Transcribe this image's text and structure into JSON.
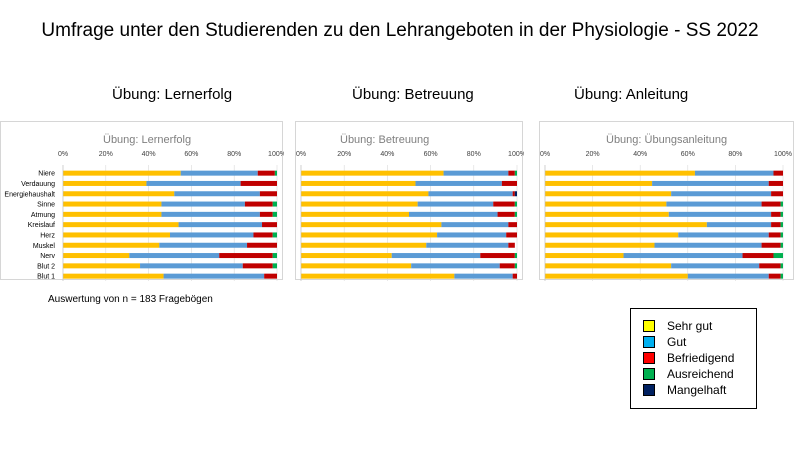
{
  "title": "Umfrage unter den Studierenden zu den Lehrangeboten in der Physiologie - SS 2022",
  "sections": [
    "Übung: Lernerfolg",
    "Übung: Betreuung",
    "Übung: Anleitung"
  ],
  "footnote": "Auswertung von n = 183 Fragebögen",
  "legend": [
    {
      "label": "Sehr gut",
      "color": "#ffff00"
    },
    {
      "label": "Gut",
      "color": "#00b0f0"
    },
    {
      "label": "Befriedigend",
      "color": "#ff0000"
    },
    {
      "label": "Ausreichend",
      "color": "#00b050"
    },
    {
      "label": "Mangelhaft",
      "color": "#002060"
    }
  ],
  "chart_data": [
    {
      "type": "bar",
      "stacked": true,
      "orientation": "horizontal",
      "title": "Übung: Lernerfolg",
      "categories": [
        "Niere",
        "Verdauung",
        "Energiehaushalt",
        "Sinne",
        "Atmung",
        "Kreislauf",
        "Herz",
        "Muskel",
        "Nerv",
        "Blut 2",
        "Blut 1"
      ],
      "x_ticks": [
        "0%",
        "20%",
        "40%",
        "60%",
        "80%",
        "100%"
      ],
      "xlim": [
        0,
        100
      ],
      "series_colors": [
        "#ffc000",
        "#5b9bd5",
        "#c00000",
        "#00b050",
        "#002060"
      ],
      "series": [
        {
          "values": [
            55,
            39,
            52,
            46,
            46,
            54,
            50,
            45,
            31,
            36,
            47
          ]
        },
        {
          "values": [
            36,
            44,
            40,
            39,
            46,
            39,
            39,
            41,
            42,
            48,
            47
          ]
        },
        {
          "values": [
            8,
            17,
            8,
            13,
            6,
            7,
            9,
            14,
            25,
            14,
            6
          ]
        },
        {
          "values": [
            1,
            0,
            0,
            2,
            2,
            0,
            2,
            0,
            2,
            2,
            0
          ]
        },
        {
          "values": [
            0,
            0,
            0,
            0,
            0,
            0,
            0,
            0,
            0,
            0,
            0
          ]
        }
      ]
    },
    {
      "type": "bar",
      "stacked": true,
      "orientation": "horizontal",
      "title": "Übung: Betreuung",
      "categories": [
        "Niere",
        "Verdauung",
        "Energiehaushalt",
        "Sinne",
        "Atmung",
        "Kreislauf",
        "Herz",
        "Muskel",
        "Nerv",
        "Blut 2",
        "Blut 1"
      ],
      "x_ticks": [
        "0%",
        "20%",
        "40%",
        "60%",
        "80%",
        "100%"
      ],
      "xlim": [
        0,
        100
      ],
      "series_colors": [
        "#ffc000",
        "#5b9bd5",
        "#c00000",
        "#00b050",
        "#002060"
      ],
      "series": [
        {
          "values": [
            66,
            53,
            59,
            54,
            50,
            65,
            63,
            58,
            42,
            51,
            71
          ]
        },
        {
          "values": [
            30,
            40,
            39,
            35,
            41,
            31,
            32,
            38,
            41,
            41,
            27
          ]
        },
        {
          "values": [
            3,
            7,
            1,
            10,
            8,
            4,
            5,
            3,
            16,
            7,
            2
          ]
        },
        {
          "values": [
            1,
            0,
            0,
            1,
            1,
            0,
            0,
            0,
            1,
            1,
            0
          ]
        },
        {
          "values": [
            0,
            0,
            1,
            0,
            0,
            0,
            0,
            0,
            0,
            0,
            0
          ]
        }
      ]
    },
    {
      "type": "bar",
      "stacked": true,
      "orientation": "horizontal",
      "title": "Übung: Übungsanleitung",
      "categories": [
        "Niere",
        "Verdauung",
        "Energiehaushalt",
        "Sinne",
        "Atmung",
        "Kreislauf",
        "Herz",
        "Muskel",
        "Nerv",
        "Blut 2",
        "Blut 1"
      ],
      "x_ticks": [
        "0%",
        "20%",
        "40%",
        "60%",
        "80%",
        "100%"
      ],
      "xlim": [
        0,
        100
      ],
      "series_colors": [
        "#ffc000",
        "#5b9bd5",
        "#c00000",
        "#00b050",
        "#002060"
      ],
      "series": [
        {
          "values": [
            63,
            45,
            53,
            51,
            52,
            68,
            56,
            46,
            33,
            53,
            60
          ]
        },
        {
          "values": [
            33,
            49,
            42,
            40,
            43,
            27,
            38,
            45,
            50,
            37,
            34
          ]
        },
        {
          "values": [
            4,
            6,
            5,
            8,
            4,
            4,
            5,
            8,
            13,
            9,
            5
          ]
        },
        {
          "values": [
            0,
            0,
            0,
            1,
            1,
            1,
            1,
            1,
            4,
            1,
            1
          ]
        },
        {
          "values": [
            0,
            0,
            0,
            0,
            0,
            0,
            0,
            0,
            0,
            0,
            0
          ]
        }
      ]
    }
  ]
}
